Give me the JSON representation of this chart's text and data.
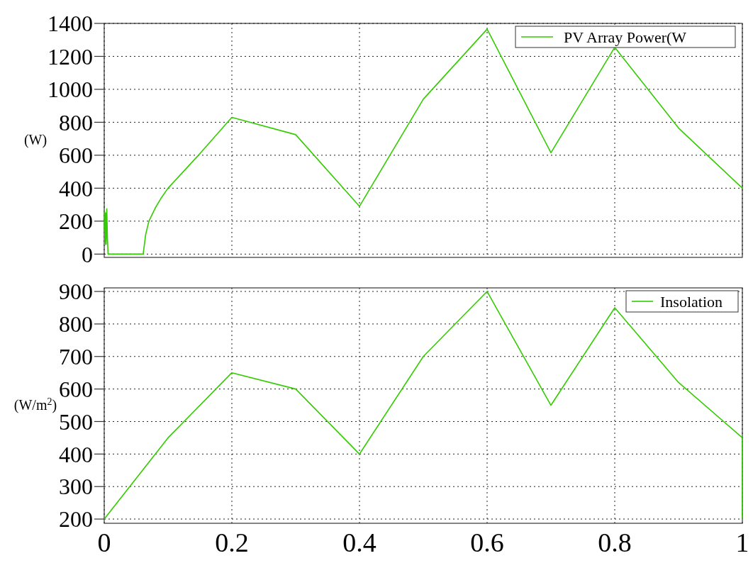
{
  "chart_data": [
    {
      "type": "line",
      "ylabel": "(W)",
      "xlim": [
        0,
        1
      ],
      "xticks": [
        0,
        0.2,
        0.4,
        0.6,
        0.8,
        1
      ],
      "ylim": [
        -20,
        1400
      ],
      "yticks": [
        0,
        200,
        400,
        600,
        800,
        1000,
        1200,
        1400
      ],
      "grid": true,
      "legend": "top right",
      "tick_labels": "y",
      "line_style": "solid",
      "series": [
        {
          "name": "PV Array Power(W",
          "color": "#33cc00",
          "x": [
            0,
            0.0005,
            0.001,
            0.002,
            0.003,
            0.004,
            0.005,
            0.006,
            0.02,
            0.04,
            0.061,
            0.065,
            0.07,
            0.08,
            0.09,
            0.1,
            0.15,
            0.2,
            0.3,
            0.4,
            0.5,
            0.6,
            0.7,
            0.8,
            0.9,
            1
          ],
          "values": [
            150,
            260,
            56,
            250,
            60,
            275,
            100,
            0,
            0,
            0,
            0,
            120,
            200,
            280,
            345,
            400,
            610,
            830,
            725,
            290,
            940,
            1365,
            615,
            1255,
            765,
            400
          ]
        }
      ]
    },
    {
      "type": "line",
      "ylabel": "(W/m$^{2}$)",
      "xlim": [
        0,
        1
      ],
      "xticks": [
        0,
        0.2,
        0.4,
        0.6,
        0.8,
        1
      ],
      "ylim": [
        187,
        911
      ],
      "yticks": [
        200,
        300,
        400,
        500,
        600,
        700,
        800,
        900
      ],
      "grid": true,
      "legend": "top right",
      "line_style": "solid",
      "series": [
        {
          "name": "Insolation",
          "color": "#33cc00",
          "x": [
            0,
            0.1,
            0.2,
            0.3,
            0.4,
            0.5,
            0.6,
            0.7,
            0.8,
            0.9,
            1,
            1
          ],
          "values": [
            200,
            450,
            650,
            600,
            400,
            700,
            900,
            550,
            850,
            620,
            450,
            200
          ]
        }
      ]
    }
  ]
}
